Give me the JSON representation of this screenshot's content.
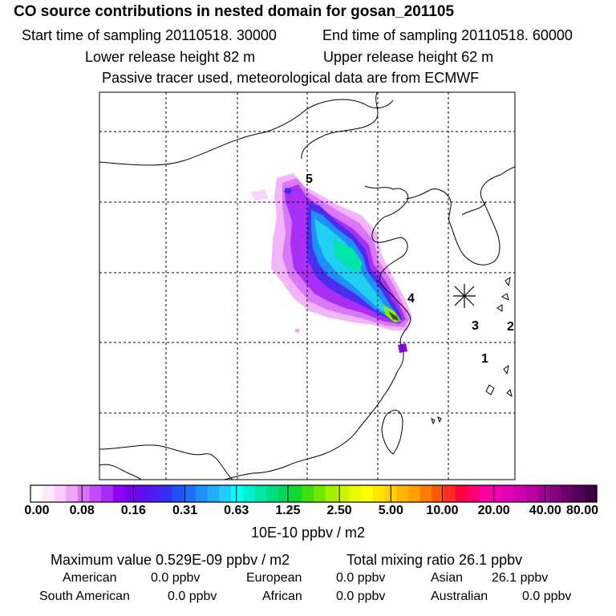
{
  "header": {
    "title": "CO  source contributions in nested domain for gosan_201105",
    "start_time": "Start time of sampling 20110518. 30000",
    "end_time": "End time of sampling 20110518. 60000",
    "lower_release": "Lower release height   82 m",
    "upper_release": "Upper release height   62 m",
    "tracer_note": "Passive tracer used, meteorological data are from ECMWF"
  },
  "map": {
    "labels": [
      "5",
      "4",
      "3",
      "2",
      "1"
    ],
    "receptor_symbol": "receptor-star"
  },
  "colorbar": {
    "ticks": [
      "0.00",
      "0.08",
      "0.16",
      "0.31",
      "0.63",
      "1.25",
      "2.50",
      "5.00",
      "10.00",
      "20.00",
      "40.00",
      "80.00"
    ],
    "unit": "10E-10 ppbv / m2",
    "colors": [
      "#ffffff",
      "#ffe9ff",
      "#fccafd",
      "#f0a5fb",
      "#d870f8",
      "#c14bf6",
      "#a92bf4",
      "#9000f2",
      "#7a00f0",
      "#6010ee",
      "#4a1ef0",
      "#3430f2",
      "#1e50f4",
      "#1f6ff7",
      "#1f8ff9",
      "#20adfb",
      "#20cdfd",
      "#00ffff",
      "#00f0d0",
      "#00e6a8",
      "#00dc80",
      "#00d85a",
      "#10d830",
      "#40e010",
      "#70e800",
      "#a0f000",
      "#c8f400",
      "#e8f800",
      "#ffff00",
      "#ffe800",
      "#ffd000",
      "#ffb800",
      "#ffa000",
      "#ff7c00",
      "#ff5800",
      "#ff2c20",
      "#ff0040",
      "#ff0070",
      "#ff00a0",
      "#f000b0",
      "#e000b8",
      "#d000b0",
      "#bc00a4",
      "#a00094",
      "#840080",
      "#6a006c",
      "#540058",
      "#3c0040"
    ]
  },
  "footer": {
    "max_value": "Maximum value  0.529E-09 ppbv / m2",
    "total_mixing": "Total mixing ratio      26.1 ppbv",
    "american_label": "American",
    "american_value": "0.0 ppbv",
    "european_label": "European",
    "european_value": "0.0 ppbv",
    "asian_label": "Asian",
    "asian_value": "26.1 ppbv",
    "south_american_label": "South American",
    "south_american_value": "0.0 ppbv",
    "african_label": "African",
    "african_value": "0.0 ppbv",
    "australian_label": "Australian",
    "australian_value": "0.0 ppbv"
  }
}
